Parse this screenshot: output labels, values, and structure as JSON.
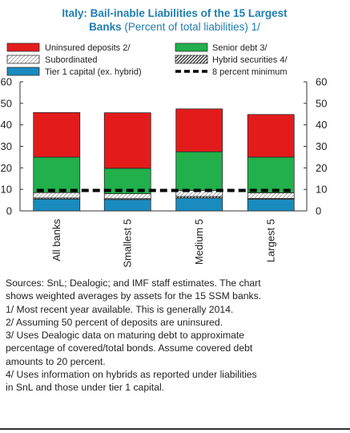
{
  "chart_data": {
    "type": "bar",
    "stacked": true,
    "title": "Italy: Bail-inable Liabilities of the 15 Largest",
    "title_line2": "Banks",
    "subtitle": "(Percent of total liabilities) 1/",
    "categories": [
      "All banks",
      "Smallest 5",
      "Medium 5",
      "Largest 5"
    ],
    "series": [
      {
        "name": "Tier 1  capital (ex. hybrid)",
        "color": "#1a8bbf",
        "pattern": "solid",
        "values": [
          5.5,
          5.3,
          6.0,
          5.4
        ]
      },
      {
        "name": "Hybrid securities 4/",
        "color": "#ffffff",
        "pattern": "dense-hatch",
        "values": [
          0.5,
          0.4,
          0.7,
          0.4
        ]
      },
      {
        "name": "Subordinated",
        "color": "#ffffff",
        "pattern": "light-hatch",
        "values": [
          2.5,
          2.3,
          2.8,
          2.6
        ]
      },
      {
        "name": "Senior debt 3/",
        "color": "#21b04b",
        "pattern": "solid",
        "values": [
          16.5,
          11.8,
          18.0,
          16.6
        ]
      },
      {
        "name": "Uninsured deposits 2/",
        "color": "#e41b1b",
        "pattern": "solid",
        "values": [
          20.7,
          25.8,
          19.9,
          19.8
        ]
      }
    ],
    "legend_order": [
      "Uninsured deposits 2/",
      "Senior debt 3/",
      "Subordinated",
      "Hybrid securities 4/",
      "Tier 1  capital (ex. hybrid)",
      "8 percent minimum"
    ],
    "reference_line": {
      "name": "8 percent minimum",
      "value": 9.5,
      "color": "#000000",
      "style": "dashed"
    },
    "ylim": [
      0,
      60
    ],
    "yticks": [
      "0",
      "10",
      "20",
      "30",
      "40",
      "50",
      "60"
    ],
    "dual_axis": true,
    "grid": false,
    "legend_placement": "top"
  },
  "notes": [
    "Sources: SnL; Dealogic; and IMF staff estimates. The chart",
    "shows weighted averages by assets for the 15 SSM banks.",
    "1/ Most recent year available. This is generally 2014.",
    "2/ Assuming 50 percent of deposits  are uninsured.",
    "3/ Uses Dealogic data on maturing debt to approximate",
    "percentage of covered/total bonds. Assume covered debt",
    "amounts to 20 percent.",
    "4/ Uses information on hybrids as reported under liabilities",
    "in SnL and those under tier 1 capital."
  ]
}
